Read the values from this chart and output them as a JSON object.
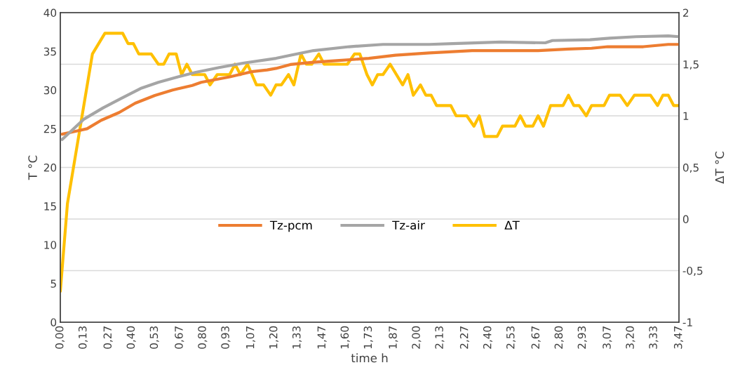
{
  "chart_data": {
    "type": "line",
    "xlabel": "time h",
    "ylabel": "T °C",
    "y2label": "ΔT °C",
    "xlim": [
      0,
      3.47
    ],
    "xticks": [
      {
        "value": 0,
        "label": "0,00"
      },
      {
        "value": 0.13,
        "label": "0,13"
      },
      {
        "value": 0.27,
        "label": "0,27"
      },
      {
        "value": 0.4,
        "label": "0,40"
      },
      {
        "value": 0.53,
        "label": "0,53"
      },
      {
        "value": 0.67,
        "label": "0,67"
      },
      {
        "value": 0.8,
        "label": "0,80"
      },
      {
        "value": 0.93,
        "label": "0,93"
      },
      {
        "value": 1.07,
        "label": "1,07"
      },
      {
        "value": 1.2,
        "label": "1,20"
      },
      {
        "value": 1.33,
        "label": "1,33"
      },
      {
        "value": 1.47,
        "label": "1,47"
      },
      {
        "value": 1.6,
        "label": "1,60"
      },
      {
        "value": 1.73,
        "label": "1,73"
      },
      {
        "value": 1.87,
        "label": "1,87"
      },
      {
        "value": 2.0,
        "label": "2,00"
      },
      {
        "value": 2.13,
        "label": "2,13"
      },
      {
        "value": 2.27,
        "label": "2,27"
      },
      {
        "value": 2.4,
        "label": "2,40"
      },
      {
        "value": 2.53,
        "label": "2,53"
      },
      {
        "value": 2.67,
        "label": "2,67"
      },
      {
        "value": 2.8,
        "label": "2,80"
      },
      {
        "value": 2.93,
        "label": "2,93"
      },
      {
        "value": 3.07,
        "label": "3,07"
      },
      {
        "value": 3.2,
        "label": "3,20"
      },
      {
        "value": 3.33,
        "label": "3,33"
      },
      {
        "value": 3.47,
        "label": "3,47"
      }
    ],
    "ylim": [
      0,
      40
    ],
    "yticks": [
      0,
      5,
      10,
      15,
      20,
      25,
      30,
      35,
      40
    ],
    "y2lim": [
      -1,
      2
    ],
    "y2ticks": [
      -1,
      {
        "value": -0.5,
        "label": "-0,5"
      },
      0,
      {
        "value": 0.5,
        "label": "0,5"
      },
      1,
      {
        "value": 1.5,
        "label": "1,5"
      },
      2
    ],
    "grid": "y",
    "legend": "center",
    "marker": "none",
    "line_style": "solid",
    "series": [
      {
        "name": "Tz-pcm",
        "color": "#ed7d31",
        "x": [
          0.01,
          0.09,
          0.15,
          0.23,
          0.33,
          0.42,
          0.53,
          0.63,
          0.74,
          0.79,
          0.95,
          1.08,
          1.16,
          1.21,
          1.29,
          1.42,
          1.55,
          1.73,
          1.88,
          2.07,
          2.31,
          2.47,
          2.55,
          2.68,
          2.85,
          2.98,
          3.07,
          3.27,
          3.41,
          3.47
        ],
        "values": [
          24.3,
          24.7,
          25.0,
          26.1,
          27.1,
          28.3,
          29.3,
          30.0,
          30.6,
          31.0,
          31.7,
          32.4,
          32.6,
          32.8,
          33.3,
          33.6,
          33.8,
          34.1,
          34.5,
          34.8,
          35.1,
          35.1,
          35.1,
          35.1,
          35.3,
          35.4,
          35.6,
          35.6,
          35.9,
          35.9
        ]
      },
      {
        "name": "Tz-air",
        "color": "#a5a5a5",
        "x": [
          0.01,
          0.07,
          0.13,
          0.24,
          0.34,
          0.45,
          0.55,
          0.66,
          0.76,
          0.89,
          1.03,
          1.21,
          1.29,
          1.42,
          1.62,
          1.81,
          2.07,
          2.2,
          2.47,
          2.72,
          2.76,
          2.97,
          3.08,
          3.23,
          3.41,
          3.47
        ],
        "values": [
          23.6,
          24.9,
          26.2,
          27.7,
          28.9,
          30.2,
          31.0,
          31.7,
          32.3,
          32.9,
          33.5,
          34.1,
          34.5,
          35.1,
          35.6,
          35.9,
          35.9,
          36.0,
          36.2,
          36.1,
          36.4,
          36.5,
          36.7,
          36.9,
          37.0,
          36.9
        ]
      },
      {
        "name": "ΔT",
        "color": "#ffc000",
        "axis": "y2",
        "x": [
          0.0,
          0.04,
          0.18,
          0.25,
          0.35,
          0.38,
          0.41,
          0.44,
          0.51,
          0.55,
          0.58,
          0.61,
          0.65,
          0.68,
          0.71,
          0.74,
          0.81,
          0.84,
          0.88,
          0.95,
          0.98,
          1.01,
          1.05,
          1.1,
          1.14,
          1.18,
          1.21,
          1.24,
          1.28,
          1.31,
          1.35,
          1.38,
          1.41,
          1.45,
          1.48,
          1.61,
          1.65,
          1.68,
          1.72,
          1.75,
          1.78,
          1.81,
          1.85,
          1.92,
          1.95,
          1.98,
          2.02,
          2.05,
          2.08,
          2.11,
          2.19,
          2.22,
          2.28,
          2.32,
          2.35,
          2.38,
          2.45,
          2.48,
          2.55,
          2.58,
          2.61,
          2.65,
          2.68,
          2.71,
          2.75,
          2.82,
          2.85,
          2.88,
          2.91,
          2.95,
          2.98,
          3.05,
          3.08,
          3.14,
          3.18,
          3.22,
          3.31,
          3.35,
          3.38,
          3.41,
          3.44,
          3.47
        ],
        "values": [
          -0.7,
          0.15,
          1.6,
          1.8,
          1.8,
          1.7,
          1.7,
          1.6,
          1.6,
          1.5,
          1.5,
          1.6,
          1.6,
          1.4,
          1.5,
          1.4,
          1.4,
          1.3,
          1.4,
          1.4,
          1.5,
          1.4,
          1.5,
          1.3,
          1.3,
          1.2,
          1.3,
          1.3,
          1.4,
          1.3,
          1.6,
          1.5,
          1.5,
          1.6,
          1.5,
          1.5,
          1.6,
          1.6,
          1.4,
          1.3,
          1.4,
          1.4,
          1.5,
          1.3,
          1.4,
          1.2,
          1.3,
          1.2,
          1.2,
          1.1,
          1.1,
          1.0,
          1.0,
          0.9,
          1.0,
          0.8,
          0.8,
          0.9,
          0.9,
          1.0,
          0.9,
          0.9,
          1.0,
          0.9,
          1.1,
          1.1,
          1.2,
          1.1,
          1.1,
          1.0,
          1.1,
          1.1,
          1.2,
          1.2,
          1.1,
          1.2,
          1.2,
          1.1,
          1.2,
          1.2,
          1.1,
          1.1
        ]
      }
    ]
  }
}
